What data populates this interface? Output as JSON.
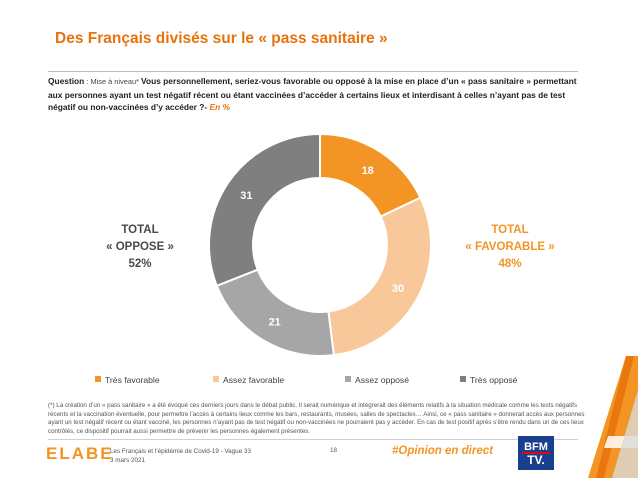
{
  "title": "Des Français divisés sur le « pass sanitaire »",
  "question": {
    "prefix": "Question",
    "sub": " : Mise à niveau* ",
    "text": "Vous personnellement, seriez-vous favorable ou opposé à la mise en place d’un « pass sanitaire » permettant aux personnes ayant un test négatif récent ou étant vaccinées d’accéder à certains lieux et interdisant à celles n’ayant pas de test négatif ou non-vaccinées d’y accéder ?",
    "dash": "- ",
    "unit": "En %"
  },
  "totals": {
    "oppose": {
      "line1": "TOTAL",
      "line2": "« OPPOSE »",
      "value": "52%"
    },
    "favorable": {
      "line1": "TOTAL",
      "line2": "« FAVORABLE »",
      "value": "48%"
    }
  },
  "chart_data": {
    "type": "pie",
    "donut": true,
    "unit": "%",
    "categories": [
      "Très favorable",
      "Assez favorable",
      "Assez opposé",
      "Très opposé"
    ],
    "values": [
      18,
      30,
      21,
      31
    ],
    "colors": [
      "#f39524",
      "#f9c89a",
      "#a6a6a6",
      "#7f7f7f"
    ],
    "start_angle_deg": 0,
    "direction": "clockwise",
    "legend_position": "bottom"
  },
  "footnote": "(*) La création d’un « pass sanitaire » a été évoqué ces derniers jours dans le débat public. Il serait numérique et intègrerait des éléments relatifs à la situation médicale comme les tests négatifs récents et la vaccination éventuelle, pour permettre l’accès à certains lieux comme les bars, restaurants, musées, salles de spectacles… Ainsi, ce « pass sanitaire » donnerait accès aux personnes ayant un test négatif récent ou étant vacciné, les personnes n’ayant pas de test négatif ou non-vaccinées ne pourraient pas y accéder. En cas de test positif après s’être rendu dans un de ces lieux contrôlés, ce dispositif pourrait aussi permettre de prévenir les personnes également présentes.",
  "footer": {
    "logo": "ELABE",
    "study": "Les Français et l’épidémie de Covid-19 - Vague 33",
    "date": "3 mars 2021",
    "page": "18",
    "hashtag": "#Opinion en direct",
    "partner_line1": "BFM",
    "partner_line2": "TV."
  }
}
